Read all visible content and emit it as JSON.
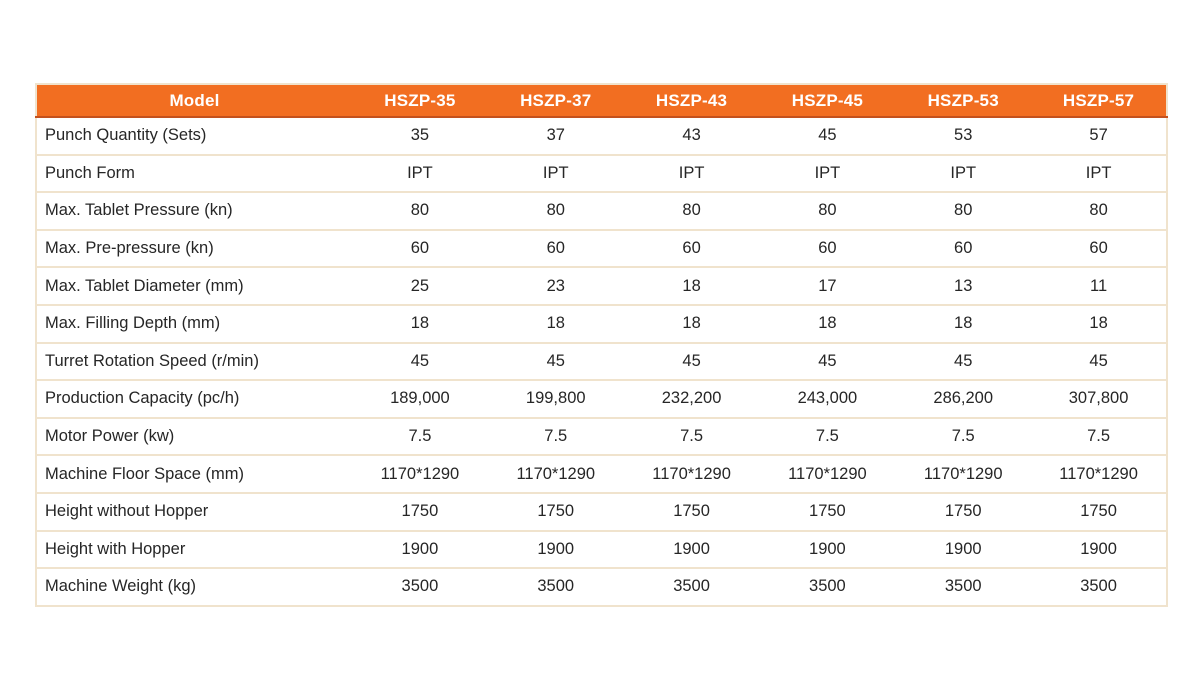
{
  "table": {
    "header": {
      "model_label": "Model",
      "columns": [
        "HSZP-35",
        "HSZP-37",
        "HSZP-43",
        "HSZP-45",
        "HSZP-53",
        "HSZP-57"
      ]
    },
    "rows": [
      {
        "label": "Punch Quantity (Sets)",
        "values": [
          "35",
          "37",
          "43",
          "45",
          "53",
          "57"
        ]
      },
      {
        "label": "Punch Form",
        "values": [
          "IPT",
          "IPT",
          "IPT",
          "IPT",
          "IPT",
          "IPT"
        ]
      },
      {
        "label": "Max. Tablet Pressure (kn)",
        "values": [
          "80",
          "80",
          "80",
          "80",
          "80",
          "80"
        ]
      },
      {
        "label": "Max. Pre-pressure (kn)",
        "values": [
          "60",
          "60",
          "60",
          "60",
          "60",
          "60"
        ]
      },
      {
        "label": "Max. Tablet Diameter (mm)",
        "values": [
          "25",
          "23",
          "18",
          "17",
          "13",
          "11"
        ]
      },
      {
        "label": "Max. Filling Depth (mm)",
        "values": [
          "18",
          "18",
          "18",
          "18",
          "18",
          "18"
        ]
      },
      {
        "label": "Turret Rotation Speed (r/min)",
        "values": [
          "45",
          "45",
          "45",
          "45",
          "45",
          "45"
        ]
      },
      {
        "label": "Production Capacity (pc/h)",
        "values": [
          "189,000",
          "199,800",
          "232,200",
          "243,000",
          "286,200",
          "307,800"
        ]
      },
      {
        "label": "Motor Power (kw)",
        "values": [
          "7.5",
          "7.5",
          "7.5",
          "7.5",
          "7.5",
          "7.5"
        ]
      },
      {
        "label": "Machine Floor Space (mm)",
        "values": [
          "1170*1290",
          "1170*1290",
          "1170*1290",
          "1170*1290",
          "1170*1290",
          "1170*1290"
        ]
      },
      {
        "label": "Height without Hopper",
        "values": [
          "1750",
          "1750",
          "1750",
          "1750",
          "1750",
          "1750"
        ]
      },
      {
        "label": "Height with Hopper",
        "values": [
          "1900",
          "1900",
          "1900",
          "1900",
          "1900",
          "1900"
        ]
      },
      {
        "label": "Machine Weight (kg)",
        "values": [
          "3500",
          "3500",
          "3500",
          "3500",
          "3500",
          "3500"
        ]
      }
    ],
    "colors": {
      "header_bg": "#f26e21",
      "header_text": "#ffffff",
      "header_bottom_border": "#c4511d",
      "row_border": "#f0e3cd",
      "body_text": "#262626",
      "page_bg": "#ffffff"
    }
  }
}
